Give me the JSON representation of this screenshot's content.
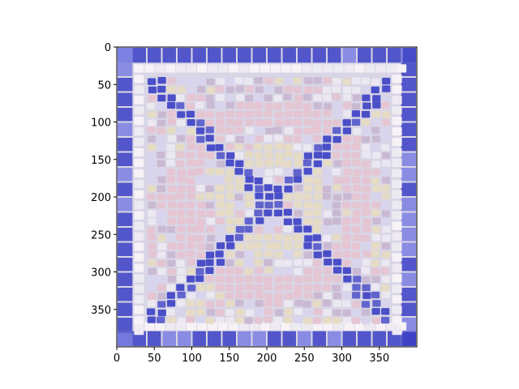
{
  "chart_data": {
    "type": "image",
    "title": "",
    "xlabel": "",
    "ylabel": "",
    "image_size": [
      400,
      400
    ],
    "xlim": [
      0,
      400
    ],
    "ylim": [
      400,
      0
    ],
    "y_inverted": true,
    "xticks": [
      0,
      50,
      100,
      150,
      200,
      250,
      300,
      350
    ],
    "yticks": [
      0,
      50,
      100,
      150,
      200,
      250,
      300,
      350
    ],
    "grid": false,
    "image_content": "mosaic-tile-pattern",
    "colors": {
      "border_blue": "#3b3fc4",
      "tile_white": "#eeeaf2",
      "tile_pink": "#e7c3cf",
      "tile_cream": "#e8dcc0",
      "grout_light": "#d8d6e6",
      "frame_dark": "#1a1a1a"
    }
  }
}
